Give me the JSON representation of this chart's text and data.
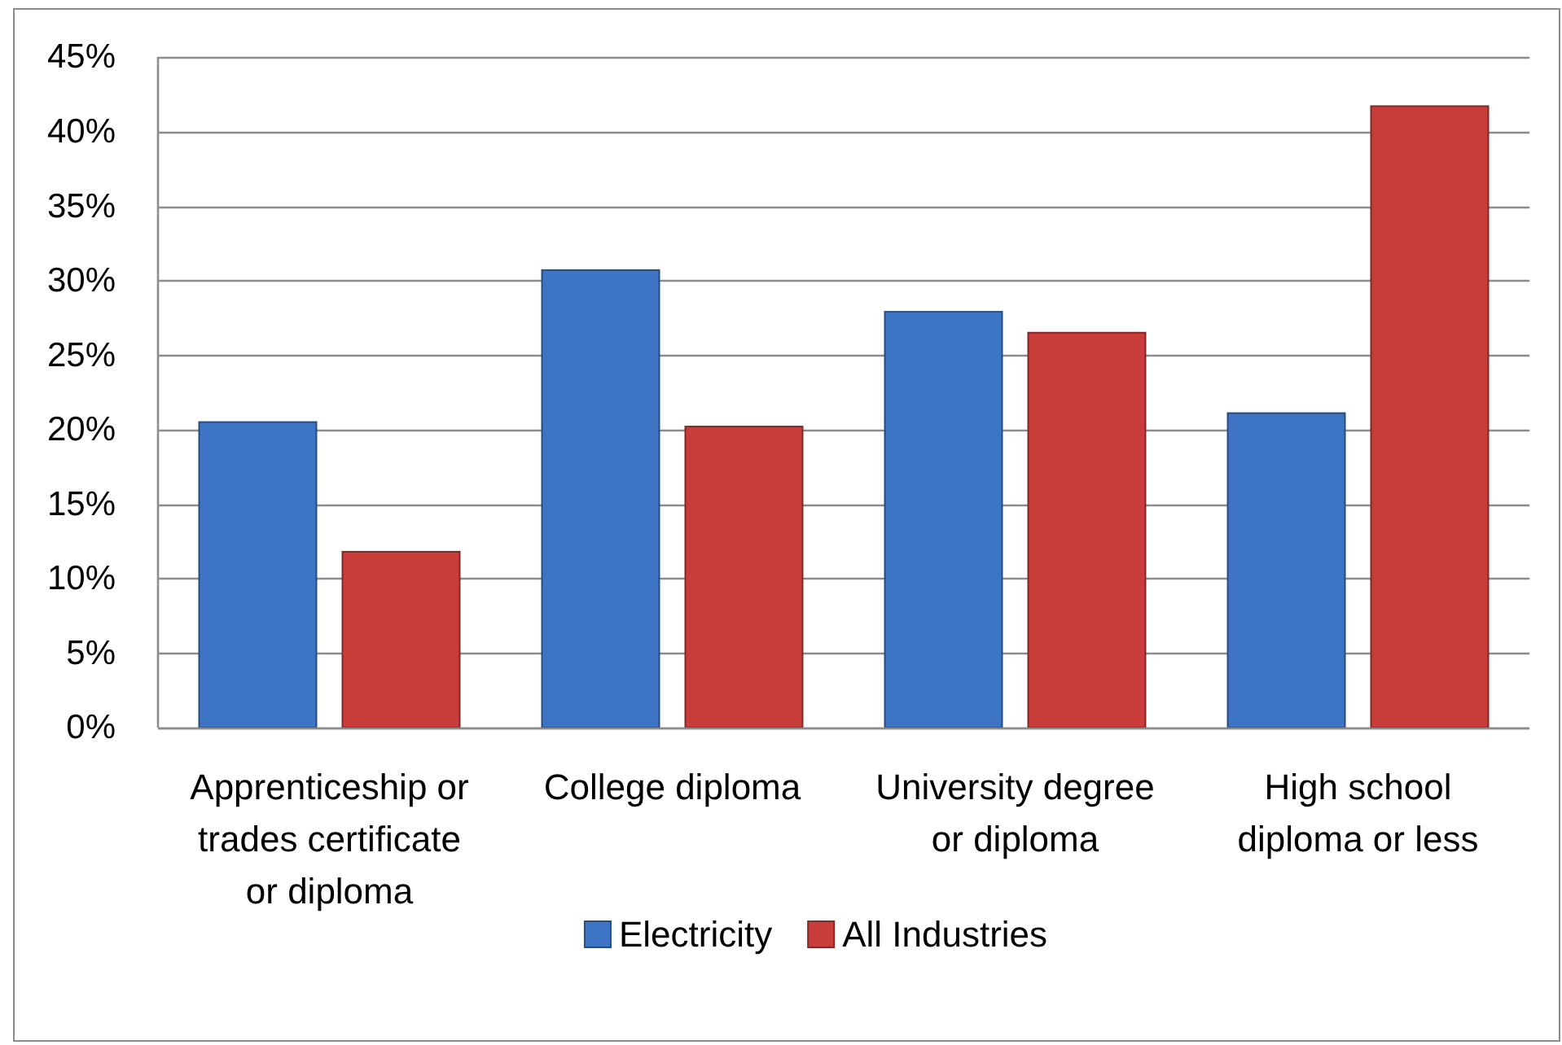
{
  "chart_data": {
    "type": "bar",
    "categories": [
      "Apprenticeship or trades certificate or diploma",
      "College diploma",
      "University degree or diploma",
      "High school diploma or less"
    ],
    "series": [
      {
        "name": "Electricity",
        "color": "#3d75c4",
        "values": [
          20.5,
          30.7,
          27.9,
          21.1
        ]
      },
      {
        "name": "All Industries",
        "color": "#c83d3a",
        "values": [
          11.8,
          20.2,
          26.5,
          41.7
        ]
      }
    ],
    "ylim": [
      0,
      45
    ],
    "yticks": [
      {
        "value": 0,
        "label": "0%"
      },
      {
        "value": 5,
        "label": "5%"
      },
      {
        "value": 10,
        "label": "10%"
      },
      {
        "value": 15,
        "label": "15%"
      },
      {
        "value": 20,
        "label": "20%"
      },
      {
        "value": 25,
        "label": "25%"
      },
      {
        "value": 30,
        "label": "30%"
      },
      {
        "value": 35,
        "label": "35%"
      },
      {
        "value": 40,
        "label": "40%"
      },
      {
        "value": 45,
        "label": "45%"
      }
    ],
    "grid": "y",
    "legend": "bottom"
  }
}
